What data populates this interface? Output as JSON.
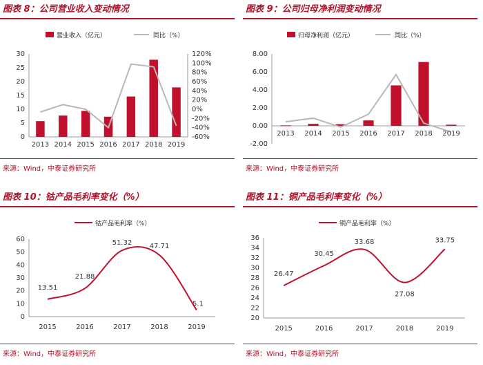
{
  "colors": {
    "accent": "#b3122a",
    "bar": "#c0102c",
    "line_gray": "#b8b8b8",
    "axis": "#999999"
  },
  "panels": [
    {
      "title": "图表 8：公司营业收入变动情况",
      "source": "来源：Wind，中泰证券研究所"
    },
    {
      "title": "图表 9：公司归母净利润变动情况",
      "source": "来源：Wind，中泰证券研究所"
    },
    {
      "title": "图表 10：钴产品毛利率变化（%）",
      "source": "来源：Wind，中泰证券研究所"
    },
    {
      "title": "图表 11：铜产品毛利率变化（%）",
      "source": "来源：Wind，中泰证券研究所"
    }
  ],
  "chart_data": [
    {
      "type": "bar",
      "categories": [
        "2013",
        "2014",
        "2015",
        "2016",
        "2017",
        "2018",
        "2019"
      ],
      "series": [
        {
          "name": "营业收入（亿元）",
          "type": "bar",
          "axis": "left",
          "values": [
            5.7,
            7.7,
            9.4,
            7.3,
            14.6,
            27.9,
            17.9
          ]
        },
        {
          "name": "同比（%）",
          "type": "line",
          "axis": "right",
          "values": [
            -6,
            10,
            0,
            -40,
            98,
            92,
            -36
          ]
        }
      ],
      "ylim": [
        0,
        30
      ],
      "yticks": [
        "0",
        "5",
        "10",
        "15",
        "20",
        "25",
        "30"
      ],
      "y2lim": [
        -60,
        120
      ],
      "y2ticks": [
        "-60%",
        "-40%",
        "-20%",
        "0%",
        "20%",
        "40%",
        "60%",
        "80%",
        "100%",
        "120%"
      ],
      "legend": "top"
    },
    {
      "type": "bar",
      "categories": [
        "2013",
        "2014",
        "2015",
        "2016",
        "2017",
        "2018",
        "2019"
      ],
      "series": [
        {
          "name": "归母净利润（亿元）",
          "type": "bar",
          "axis": "left",
          "values": [
            0.05,
            0.22,
            0.18,
            0.6,
            4.5,
            7.1,
            0.12
          ]
        },
        {
          "name": "同比（%）",
          "type": "line",
          "axis": "left",
          "values": [
            0.45,
            0.85,
            -0.15,
            1.3,
            5.7,
            0.3,
            -0.7
          ]
        }
      ],
      "ylim": [
        -2,
        8
      ],
      "yticks": [
        "-2.00",
        "0.00",
        "2.00",
        "4.00",
        "6.00",
        "8.00"
      ],
      "legend": "top"
    },
    {
      "type": "line",
      "categories": [
        "2015",
        "2016",
        "2017",
        "2018",
        "2019"
      ],
      "series": [
        {
          "name": "钴产品毛利率（%）",
          "values": [
            13.51,
            21.88,
            51.32,
            47.71,
            5.1
          ]
        }
      ],
      "labels": [
        "13.51",
        "21.88",
        "51.32",
        "47.71",
        "5.1"
      ],
      "ylim": [
        0,
        60
      ],
      "yticks": [
        "0",
        "10",
        "20",
        "30",
        "40",
        "50",
        "60"
      ],
      "legend": "top"
    },
    {
      "type": "line",
      "categories": [
        "2015",
        "2016",
        "2017",
        "2018",
        "2019"
      ],
      "series": [
        {
          "name": "铜产品毛利率（%）",
          "values": [
            26.47,
            30.45,
            33.68,
            27.08,
            33.75
          ]
        }
      ],
      "labels": [
        "26.47",
        "30.45",
        "33.68",
        "27.08",
        "33.75"
      ],
      "ylim": [
        20,
        36
      ],
      "yticks": [
        "20",
        "22",
        "24",
        "26",
        "28",
        "30",
        "32",
        "34",
        "36"
      ],
      "legend": "top"
    }
  ]
}
